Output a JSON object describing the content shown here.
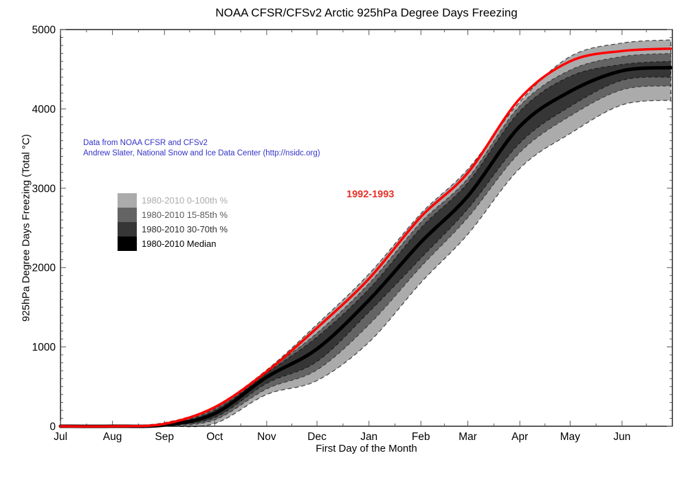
{
  "title": "NOAA CFSR/CFSv2 Arctic 925hPa Degree Days Freezing",
  "axes": {
    "xlabel": "First Day of the Month",
    "ylabel": "925hPa Degree Days Freezing (Total °C)"
  },
  "annotation": {
    "line1": "Data from NOAA CFSR and CFSv2",
    "line2": "Andrew Slater, National Snow and Ice Data Center (http://nsidc.org)",
    "color": "#3232c8"
  },
  "highlight_label": {
    "text": "1992-1993",
    "color": "#e53228"
  },
  "legend": {
    "items": [
      {
        "label": "1980-2010 0-100th %",
        "swatch_color": "#ababab",
        "text_color": "#ababab"
      },
      {
        "label": "1980-2010 15-85th %",
        "swatch_color": "#646464",
        "text_color": "#5a5a5a"
      },
      {
        "label": "1980-2010 30-70th %",
        "swatch_color": "#363636",
        "text_color": "#2e2e2e"
      },
      {
        "label": "1980-2010 Median",
        "swatch_color": "#000000",
        "text_color": "#000000"
      }
    ]
  },
  "chart_data": {
    "type": "line",
    "title": "NOAA CFSR/CFSv2 Arctic 925hPa Degree Days Freezing",
    "xlabel": "First Day of the Month",
    "ylabel": "925hPa Degree Days Freezing (Total °C)",
    "x_unit": "days since Jul 1",
    "x_range_days": [
      0,
      365
    ],
    "ylim": [
      0,
      5000
    ],
    "y_ticks": [
      0,
      1000,
      2000,
      3000,
      4000,
      5000
    ],
    "y_minor_step": 100,
    "grid": false,
    "legend_position": "upper-left-inside",
    "x_ticks": [
      {
        "day": 0,
        "label": "Jul"
      },
      {
        "day": 31,
        "label": "Aug"
      },
      {
        "day": 62,
        "label": "Sep"
      },
      {
        "day": 92,
        "label": "Oct"
      },
      {
        "day": 123,
        "label": "Nov"
      },
      {
        "day": 153,
        "label": "Dec"
      },
      {
        "day": 184,
        "label": "Jan"
      },
      {
        "day": 215,
        "label": "Feb"
      },
      {
        "day": 243,
        "label": "Mar"
      },
      {
        "day": 274,
        "label": "Apr"
      },
      {
        "day": 304,
        "label": "May"
      },
      {
        "day": 335,
        "label": "Jun"
      }
    ],
    "x_minor_days": [
      15.5,
      46.5,
      77,
      107.5,
      138,
      168.5,
      199.5,
      229,
      258.5,
      289,
      319.5,
      349.5
    ],
    "x": [
      0,
      31,
      62,
      92,
      123,
      153,
      184,
      215,
      243,
      274,
      304,
      335,
      364
    ],
    "series": [
      {
        "name": "1980-2010 0th percentile (min)",
        "role": "min",
        "values": [
          0,
          0,
          0,
          35,
          400,
          575,
          1060,
          1810,
          2420,
          3250,
          3690,
          4050,
          4110
        ]
      },
      {
        "name": "1980-2010 15th percentile",
        "role": "p15",
        "values": [
          0,
          0,
          5,
          80,
          470,
          710,
          1280,
          2010,
          2630,
          3450,
          3910,
          4240,
          4290
        ]
      },
      {
        "name": "1980-2010 30th percentile",
        "role": "p30",
        "values": [
          0,
          0,
          10,
          110,
          540,
          815,
          1440,
          2120,
          2740,
          3570,
          4030,
          4360,
          4400
        ]
      },
      {
        "name": "1980-2010 Median",
        "role": "median",
        "values": [
          0,
          0,
          15,
          160,
          620,
          975,
          1590,
          2320,
          2900,
          3780,
          4220,
          4480,
          4520
        ]
      },
      {
        "name": "1980-2010 70th percentile",
        "role": "p70",
        "values": [
          0,
          0,
          20,
          200,
          670,
          1125,
          1730,
          2500,
          3070,
          3970,
          4410,
          4560,
          4600
        ]
      },
      {
        "name": "1980-2010 85th percentile",
        "role": "p85",
        "values": [
          0,
          0,
          25,
          220,
          695,
          1175,
          1800,
          2570,
          3125,
          4040,
          4490,
          4660,
          4700
        ]
      },
      {
        "name": "1980-2010 100th percentile (max)",
        "role": "max",
        "values": [
          0,
          5,
          45,
          250,
          710,
          1285,
          1920,
          2680,
          3240,
          4090,
          4660,
          4830,
          4870
        ]
      },
      {
        "name": "1992-1993",
        "role": "highlight",
        "values": [
          0,
          0,
          30,
          240,
          690,
          1240,
          1860,
          2640,
          3195,
          4130,
          4600,
          4730,
          4760
        ]
      }
    ],
    "colors": {
      "band_0_100": "#ababab",
      "band_15_85": "#646464",
      "band_30_70": "#363636",
      "median": "#000000",
      "highlight": "#ff0000"
    }
  }
}
